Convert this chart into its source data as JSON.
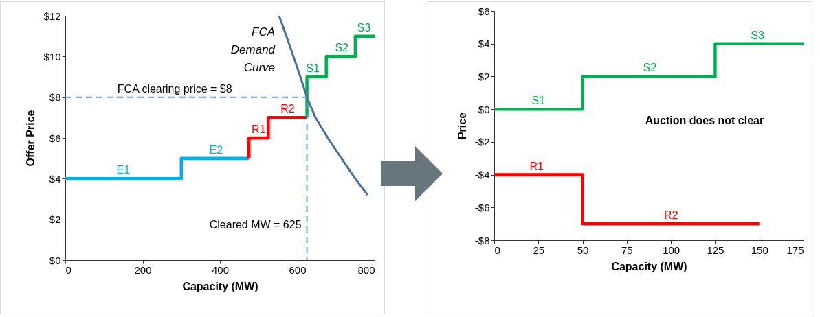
{
  "chart_data": [
    {
      "type": "line",
      "xlabel": "Capacity (MW)",
      "ylabel": "Offer Price",
      "xlim": [
        0,
        800
      ],
      "xticks": [
        0,
        200,
        400,
        600,
        800
      ],
      "ylim": [
        0,
        12
      ],
      "yticks": [
        {
          "value": 0,
          "label": "$0"
        },
        {
          "value": 2,
          "label": "$2"
        },
        {
          "value": 4,
          "label": "$4"
        },
        {
          "value": 6,
          "label": "$6"
        },
        {
          "value": 8,
          "label": "$8"
        },
        {
          "value": 10,
          "label": "$10"
        },
        {
          "value": 12,
          "label": "$12"
        }
      ],
      "grid": false,
      "series": [
        {
          "color": "#00b0f0",
          "x": [
            0,
            300,
            300,
            475
          ],
          "values": [
            4,
            4,
            5,
            5
          ]
        },
        {
          "color": "#ff0000",
          "x": [
            475,
            475,
            525,
            525,
            625
          ],
          "values": [
            5,
            6,
            6,
            7,
            7
          ]
        },
        {
          "color": "#00b050",
          "x": [
            625,
            625,
            675,
            675,
            750,
            750,
            800
          ],
          "values": [
            7,
            9,
            9,
            10,
            10,
            11,
            11
          ]
        },
        {
          "color": "#5b9bd5",
          "line_style": "dashed",
          "x": [
            0,
            625,
            625
          ],
          "values": [
            8,
            8,
            0
          ]
        },
        {
          "name": "FCA Demand Curve",
          "color": "#44719c",
          "x": [
            553,
            572,
            590,
            608,
            625,
            647,
            679,
            714,
            750,
            782
          ],
          "values": [
            12,
            11,
            10,
            9,
            8,
            7,
            6,
            5,
            4,
            3.2
          ]
        }
      ],
      "annotations": [
        {
          "text": "E1",
          "x": 150,
          "y": 4
        },
        {
          "text": "E2",
          "x": 390,
          "y": 5
        },
        {
          "text": "R1",
          "x": 500,
          "y": 6
        },
        {
          "text": "R2",
          "x": 575,
          "y": 7
        },
        {
          "text": "S1",
          "x": 640,
          "y": 9
        },
        {
          "text": "S2",
          "x": 715,
          "y": 10
        },
        {
          "text": "S3",
          "x": 772,
          "y": 11
        },
        {
          "text": "FCA clearing price = $8",
          "x": 283,
          "y": 8
        },
        {
          "text": "Cleared MW = 625",
          "x": 625,
          "y": 1.3
        }
      ]
    },
    {
      "type": "line",
      "xlabel": "Capacity (MW)",
      "ylabel": "Price",
      "xlim": [
        0,
        175
      ],
      "xticks": [
        0,
        25,
        50,
        75,
        100,
        125,
        150,
        175
      ],
      "ylim": [
        -8,
        6
      ],
      "yticks": [
        {
          "value": -8,
          "label": "-$8"
        },
        {
          "value": -6,
          "label": "-$6"
        },
        {
          "value": -4,
          "label": "-$4"
        },
        {
          "value": -2,
          "label": "-$2"
        },
        {
          "value": 0,
          "label": "$0"
        },
        {
          "value": 2,
          "label": "$2"
        },
        {
          "value": 4,
          "label": "$4"
        },
        {
          "value": 6,
          "label": "$6"
        }
      ],
      "grid": false,
      "series": [
        {
          "color": "#00b050",
          "x": [
            0,
            50,
            50,
            125,
            125,
            175
          ],
          "values": [
            0,
            0,
            2,
            2,
            4,
            4
          ]
        },
        {
          "color": "#ff0000",
          "x": [
            0,
            50,
            50,
            150
          ],
          "values": [
            -4,
            -4,
            -7,
            -7
          ]
        }
      ],
      "annotations": [
        {
          "text": "S1",
          "x": 25,
          "y": 0
        },
        {
          "text": "S2",
          "x": 88,
          "y": 2
        },
        {
          "text": "S3",
          "x": 149,
          "y": 4
        },
        {
          "text": "R1",
          "x": 24,
          "y": -4
        },
        {
          "text": "R2",
          "x": 100,
          "y": -7
        },
        "Auction does not clear"
      ]
    }
  ]
}
